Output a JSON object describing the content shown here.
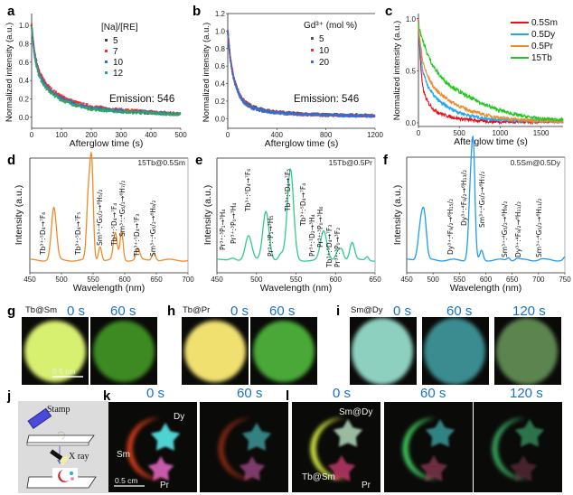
{
  "panel_labels": {
    "a": "a",
    "b": "b",
    "c": "c",
    "d": "d",
    "e": "e",
    "f": "f",
    "g": "g",
    "h": "h",
    "i": "i",
    "j": "j",
    "k": "k",
    "l": "l"
  },
  "chart_data": [
    {
      "id": "a",
      "type": "scatter",
      "xlabel": "Afterglow time (s)",
      "ylabel": "Normalized intensity (a.u.)",
      "xlim": [
        0,
        500
      ],
      "ylim": [
        -0.12,
        1.13
      ],
      "xticks": [
        0,
        100,
        200,
        300,
        400,
        500
      ],
      "yticks": [
        0.0,
        0.2,
        0.4,
        0.6,
        0.8,
        1.0
      ],
      "legend_title": "[Na]/[RE]",
      "legend_placement": "top-center",
      "annotation": "Emission: 546",
      "x": [
        0,
        10,
        25,
        50,
        75,
        100,
        150,
        200,
        300,
        400,
        500
      ],
      "series": [
        {
          "name": "5",
          "color": "#444444",
          "values": [
            1.0,
            0.68,
            0.47,
            0.33,
            0.26,
            0.21,
            0.14,
            0.1,
            0.07,
            0.05,
            0.035
          ]
        },
        {
          "name": "7",
          "color": "#e8343a",
          "values": [
            1.0,
            0.7,
            0.5,
            0.36,
            0.28,
            0.23,
            0.16,
            0.12,
            0.08,
            0.06,
            0.04
          ]
        },
        {
          "name": "10",
          "color": "#2f6fd8",
          "values": [
            1.0,
            0.68,
            0.47,
            0.33,
            0.25,
            0.21,
            0.14,
            0.1,
            0.07,
            0.05,
            0.035
          ]
        },
        {
          "name": "12",
          "color": "#2fa860",
          "values": [
            1.0,
            0.66,
            0.45,
            0.31,
            0.24,
            0.19,
            0.13,
            0.09,
            0.06,
            0.045,
            0.03
          ]
        }
      ]
    },
    {
      "id": "b",
      "type": "scatter",
      "xlabel": "Afterglow time (s)",
      "ylabel": "Normalized intensity (a.u.)",
      "xlim": [
        0,
        1200
      ],
      "ylim": [
        -0.11,
        1.2
      ],
      "xticks": [
        0,
        400,
        800,
        1200
      ],
      "yticks": [
        0.0,
        0.2,
        0.4,
        0.6,
        0.8,
        1.0,
        1.2
      ],
      "legend_title": "Gd³⁺ (mol %)",
      "legend_placement": "top-center",
      "annotation": "Emission: 546",
      "x": [
        0,
        20,
        50,
        100,
        150,
        200,
        300,
        400,
        600,
        800,
        1200
      ],
      "series": [
        {
          "name": "5",
          "color": "#555555",
          "values": [
            1.0,
            0.7,
            0.46,
            0.27,
            0.18,
            0.14,
            0.1,
            0.075,
            0.055,
            0.045,
            0.035
          ]
        },
        {
          "name": "10",
          "color": "#e8343a",
          "values": [
            1.0,
            0.7,
            0.45,
            0.26,
            0.17,
            0.13,
            0.09,
            0.07,
            0.05,
            0.04,
            0.03
          ]
        },
        {
          "name": "20",
          "color": "#2f6fd8",
          "values": [
            1.0,
            0.69,
            0.44,
            0.25,
            0.16,
            0.12,
            0.085,
            0.065,
            0.05,
            0.04,
            0.03
          ]
        }
      ]
    },
    {
      "id": "c",
      "type": "line",
      "xlabel": "Afterglow time (s)",
      "ylabel": "Normalized intensity (a.u.)",
      "xlim": [
        0,
        1770
      ],
      "ylim": [
        -0.035,
        1.05
      ],
      "xticks": [
        0,
        500,
        1000,
        1500
      ],
      "yticks": [
        0.0,
        0.5,
        1.0
      ],
      "legend_placement": "top-right",
      "x": [
        0,
        50,
        100,
        200,
        300,
        500,
        750,
        1000,
        1250,
        1500,
        1770
      ],
      "series": [
        {
          "name": "0.5Sm",
          "color": "#e8101a",
          "values": [
            1.0,
            0.35,
            0.22,
            0.12,
            0.08,
            0.04,
            0.02,
            0.01,
            0.01,
            0.01,
            0.01
          ]
        },
        {
          "name": "0.5Dy",
          "color": "#1ea8f0",
          "values": [
            0.95,
            0.5,
            0.38,
            0.25,
            0.18,
            0.1,
            0.05,
            0.03,
            0.02,
            0.02,
            0.01
          ]
        },
        {
          "name": "0.5Pr",
          "color": "#f08a2a",
          "values": [
            0.95,
            0.6,
            0.47,
            0.33,
            0.26,
            0.16,
            0.09,
            0.05,
            0.03,
            0.02,
            0.01
          ]
        },
        {
          "name": "15Tb",
          "color": "#1ec81e",
          "values": [
            0.95,
            0.8,
            0.68,
            0.52,
            0.42,
            0.3,
            0.2,
            0.12,
            0.07,
            0.04,
            0.03
          ]
        }
      ]
    },
    {
      "id": "d",
      "type": "line",
      "xlabel": "Wavelength (nm)",
      "ylabel": "Intensity (a.u.)",
      "sample": "15Tb@0.5Sm",
      "color": "#f08a2a",
      "xlim": [
        450,
        700
      ],
      "ylim": [
        -0.133,
        1.076
      ],
      "xticks": [
        450,
        500,
        550,
        600,
        650,
        700
      ],
      "peaks_nm_height_width": [
        [
          488,
          0.55,
          4
        ],
        [
          543,
          0.72,
          3
        ],
        [
          548,
          0.9,
          2.5
        ],
        [
          561,
          0.15,
          2.5
        ],
        [
          585,
          0.28,
          3
        ],
        [
          595,
          0.3,
          2.5
        ],
        [
          621,
          0.12,
          3
        ],
        [
          646,
          0.08,
          3
        ]
      ],
      "annotations": [
        "Tb³⁺:⁵D₄→⁷F₆",
        "Tb³⁺:⁵D₄→⁷F₅",
        "Sm³⁺:⁴G₅/₂→⁶H₅/₂",
        "Tb³⁺:⁵D₄→⁷F₄",
        "Sm³⁺:⁴G₅/₂→⁶H₇/₂",
        "Tb³⁺:⁵D₄→⁷F₃",
        "Sm³⁺:⁴G₅/₂→⁶H₉/₂"
      ]
    },
    {
      "id": "e",
      "type": "line",
      "xlabel": "Wavelength (nm)",
      "ylabel": "Intensity (a.u.)",
      "sample": "15Tb@0.5Pr",
      "color": "#2fcc8a",
      "xlim": [
        450,
        650
      ],
      "ylim": [
        -0.133,
        1.076
      ],
      "xticks": [
        450,
        500,
        550,
        600,
        650
      ],
      "peaks_nm_height_width": [
        [
          470,
          0.03,
          4
        ],
        [
          490,
          0.25,
          4
        ],
        [
          512,
          0.52,
          4
        ],
        [
          531,
          0.06,
          3
        ],
        [
          543,
          0.95,
          4
        ],
        [
          585,
          0.3,
          4
        ],
        [
          603,
          0.1,
          3
        ],
        [
          608,
          0.1,
          2.5
        ],
        [
          621,
          0.18,
          3
        ],
        [
          640,
          0.04,
          2
        ]
      ],
      "annotations": [
        "Pr³⁺:³P₁→³H₄",
        "Pr³⁺:³P₀→³H₄",
        "Tb³⁺:⁵D₄→⁷F₆",
        "Pr³⁺:³P₁→³H₅",
        "Tb³⁺:⁵D₄→⁷F₅",
        "Tb³⁺:⁵D₄→⁷F₄",
        "Pr³⁺:¹D₂→³H₄",
        "Pr³⁺:³P₀→³H₆",
        "Tb³⁺:⁵D₄→⁷F₃",
        "Pr³⁺:³P₀→³F₂"
      ]
    },
    {
      "id": "f",
      "type": "line",
      "xlabel": "Wavelength (nm)",
      "ylabel": "Intensity (a.u.)",
      "sample": "0.5Sm@0.5Dy",
      "color": "#1e9cf0",
      "xlim": [
        450,
        750
      ],
      "ylim": [
        -0.133,
        1.076
      ],
      "xticks": [
        450,
        500,
        550,
        600,
        650,
        700,
        750
      ],
      "peaks_nm_height_width": [
        [
          477,
          0.4,
          5
        ],
        [
          484,
          0.35,
          4
        ],
        [
          572,
          0.85,
          4
        ],
        [
          577,
          0.8,
          3
        ],
        [
          592,
          0.1,
          3
        ],
        [
          643,
          0.03,
          3
        ],
        [
          660,
          0.02,
          4
        ],
        [
          705,
          0.01,
          5
        ],
        [
          750,
          0.03,
          3
        ]
      ],
      "annotations": [
        "Dy³⁺:⁴F₉/₂→⁶H₁₅/₂",
        "Dy³⁺:⁴F₉/₂→⁶H₁₃/₂",
        "Sm³⁺:⁴G₅/₂→⁶H₇/₂",
        "Sm³⁺:⁴G₅/₂→⁶H₉/₂",
        "Dy³⁺:⁴F₉/₂→⁶H₁₁/₂",
        "Sm³⁺:⁴G₅/₂→⁶H₁₁/₂"
      ]
    }
  ],
  "photos": {
    "g": {
      "sample": "Tb@Sm",
      "times": [
        "0 s",
        "60 s"
      ],
      "scale_bar": "0.5 cm",
      "colors": [
        "#d8f070",
        "#3c8a20"
      ]
    },
    "h": {
      "sample": "Tb@Pr",
      "times": [
        "0 s",
        "60 s"
      ],
      "colors": [
        "#f0e070",
        "#48a838"
      ]
    },
    "i": {
      "sample": "Sm@Dy",
      "times": [
        "0 s",
        "60 s",
        "120 s"
      ],
      "colors": [
        "#8ed0c0",
        "#3a8c90",
        "#5c8450"
      ]
    },
    "j": {
      "stamp_label": "Stamp",
      "xray_label": "X ray"
    },
    "k": {
      "times": [
        "0 s",
        "60 s"
      ],
      "labels": {
        "dy": "Dy",
        "sm": "Sm",
        "pr": "Pr"
      },
      "scale_bar": "0.5 cm"
    },
    "l": {
      "times": [
        "0 s",
        "60 s",
        "120 s"
      ],
      "labels": {
        "smdy": "Sm@Dy",
        "tbsm": "Tb@Sm",
        "pr": "Pr"
      }
    }
  }
}
